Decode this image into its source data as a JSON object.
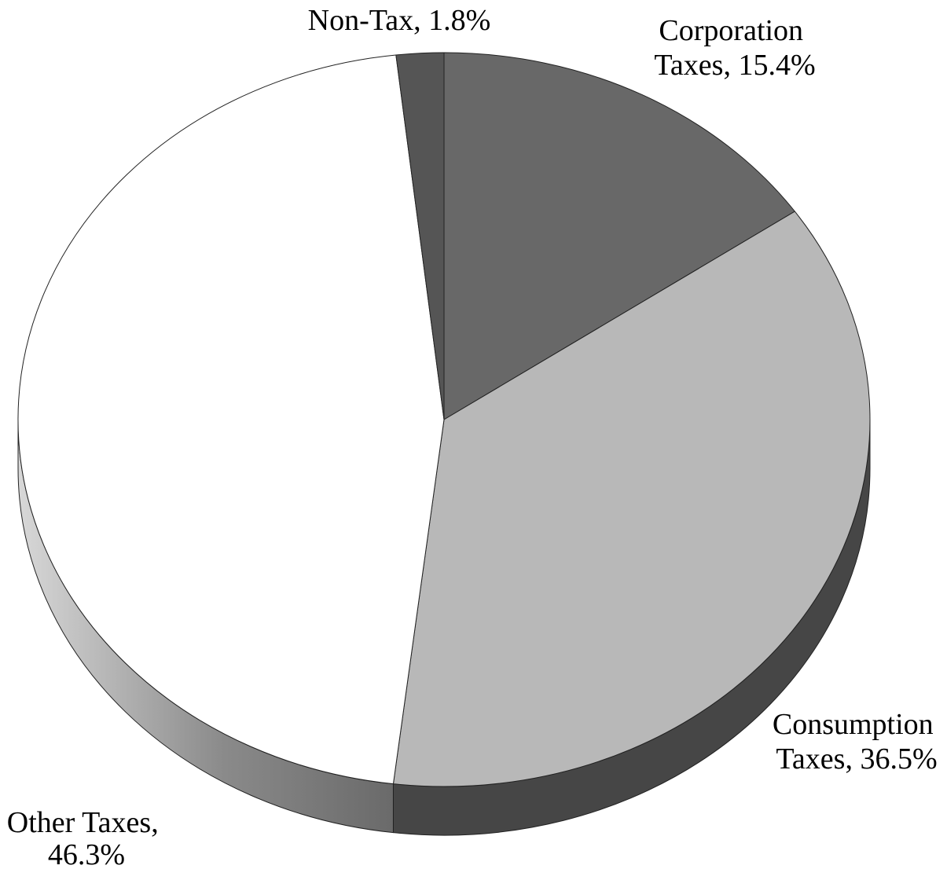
{
  "chart_data": {
    "type": "pie",
    "style": "3d",
    "title": "",
    "slices": [
      {
        "name": "Corporation Taxes",
        "value": 15.4,
        "label_lines": [
          "Corporation",
          "Taxes, 15.4%"
        ],
        "color": "#686868",
        "side_color": "#555555"
      },
      {
        "name": "Consumption Taxes",
        "value": 36.5,
        "label_lines": [
          "Consumption",
          "Taxes, 36.5%"
        ],
        "color": "#b8b8b8",
        "side_color": "#464646"
      },
      {
        "name": "Other Taxes",
        "value": 46.3,
        "label_lines": [
          "Other Taxes,",
          "46.3%"
        ],
        "color": "#ffffff",
        "side_color": "#8a8a8a"
      },
      {
        "name": "Non-Tax",
        "value": 1.8,
        "label_lines": [
          "Non-Tax, 1.8%"
        ],
        "color": "#555555",
        "side_color": "#4a4a4a"
      }
    ],
    "start": "top",
    "direction": "clockwise"
  }
}
